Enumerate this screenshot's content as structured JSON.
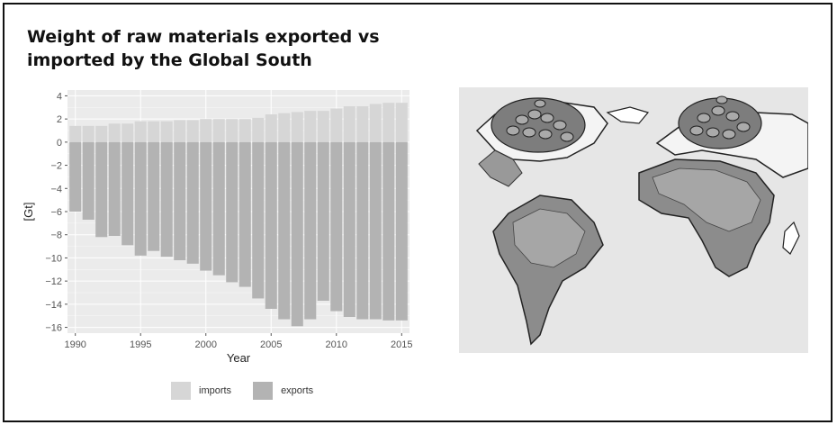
{
  "title": "Weight of raw materials exported vs imported by the Global South",
  "chart_data": {
    "type": "bar",
    "stacked": true,
    "title": "Weight of raw materials exported vs imported by the Global South",
    "xlabel": "Year",
    "ylabel": "[Gt]",
    "ylim": [
      -16.5,
      4.5
    ],
    "yticks": [
      4,
      2,
      0,
      -2,
      -4,
      -6,
      -8,
      -10,
      -12,
      -14,
      -16
    ],
    "ytick_labels": [
      "4",
      "2",
      "0",
      "−2",
      "−4",
      "−6",
      "−8",
      "−10",
      "−12",
      "−14",
      "−16"
    ],
    "xlim": [
      1989.4,
      2015.6
    ],
    "xticks": [
      1990,
      1995,
      2000,
      2005,
      2010,
      2015
    ],
    "xtick_labels": [
      "1990",
      "1995",
      "2000",
      "2005",
      "2010",
      "2015"
    ],
    "x": [
      1990,
      1991,
      1992,
      1993,
      1994,
      1995,
      1996,
      1997,
      1998,
      1999,
      2000,
      2001,
      2002,
      2003,
      2004,
      2005,
      2006,
      2007,
      2008,
      2009,
      2010,
      2011,
      2012,
      2013,
      2014,
      2015
    ],
    "series": [
      {
        "name": "imports",
        "color": "#d6d6d6",
        "values": [
          1.4,
          1.4,
          1.4,
          1.6,
          1.6,
          1.8,
          1.8,
          1.8,
          1.9,
          1.9,
          2.0,
          2.0,
          2.0,
          2.0,
          2.1,
          2.4,
          2.5,
          2.6,
          2.7,
          2.7,
          2.9,
          3.1,
          3.1,
          3.3,
          3.4,
          3.4
        ]
      },
      {
        "name": "exports",
        "color": "#b3b3b3",
        "values": [
          -6.0,
          -6.7,
          -8.2,
          -8.1,
          -8.9,
          -9.8,
          -9.4,
          -9.9,
          -10.2,
          -10.5,
          -11.1,
          -11.5,
          -12.1,
          -12.5,
          -13.5,
          -14.4,
          -15.3,
          -15.9,
          -15.3,
          -13.7,
          -14.6,
          -15.1,
          -15.3,
          -15.3,
          -15.4,
          -15.4
        ]
      }
    ],
    "grid": true,
    "legend": "bottom"
  },
  "legend": {
    "imports_label": "imports",
    "exports_label": "exports"
  },
  "colors": {
    "panel_background": "#ebebeb",
    "gridline": "#ffffff",
    "imports": "#d6d6d6",
    "exports": "#b3b3b3"
  },
  "map": {
    "icon": "world-map-illustration"
  }
}
